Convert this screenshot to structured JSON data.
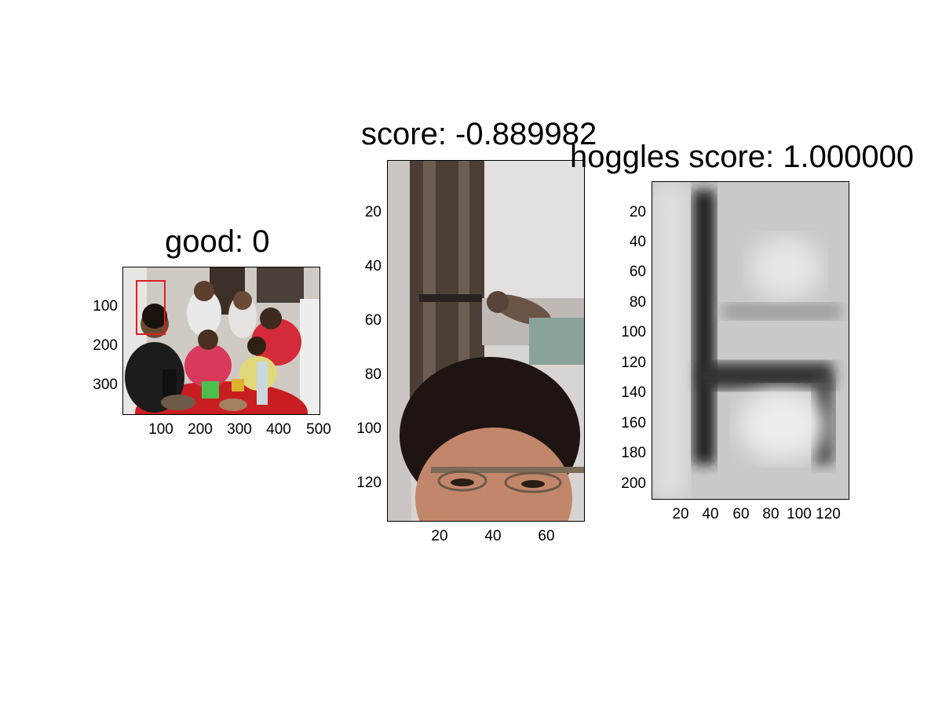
{
  "panels": [
    {
      "title": "good: 0",
      "image": "group-photo",
      "y_ticks": [
        "100",
        "200",
        "300"
      ],
      "x_ticks": [
        "100",
        "200",
        "300",
        "400",
        "500"
      ]
    },
    {
      "title": "score: -0.889982",
      "image": "face-crop-photo",
      "y_ticks": [
        "20",
        "40",
        "60",
        "80",
        "100",
        "120"
      ],
      "x_ticks": [
        "20",
        "40",
        "60"
      ]
    },
    {
      "title": "hoggles score: 1.000000",
      "image": "grayscale-hoggles-reconstruction",
      "y_ticks": [
        "20",
        "40",
        "60",
        "80",
        "100",
        "120",
        "140",
        "160",
        "180",
        "200"
      ],
      "x_ticks": [
        "20",
        "40",
        "60",
        "80",
        "100",
        "120"
      ]
    }
  ],
  "colors": {
    "detection_box": "#e02020",
    "axis": "#000000"
  }
}
